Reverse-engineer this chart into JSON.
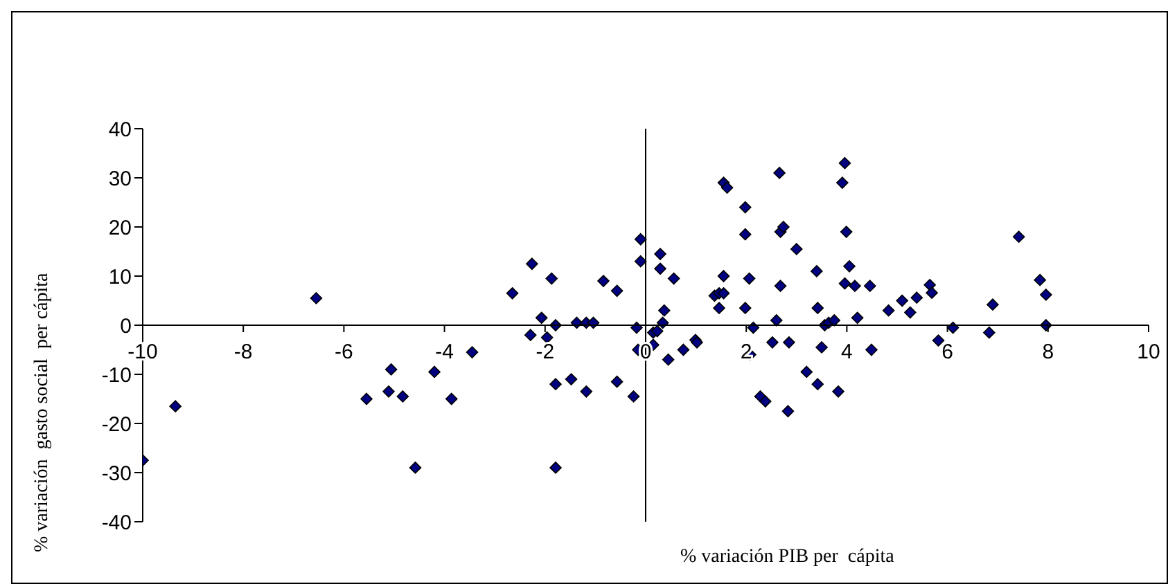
{
  "chart_data": {
    "type": "scatter",
    "xlabel": "% variación PIB per  cápita",
    "ylabel": "% variación  gasto social  per cápita",
    "xlim": [
      -10,
      10
    ],
    "xticks": [
      -10,
      -8,
      -6,
      -4,
      -2,
      0,
      2,
      4,
      6,
      8,
      10
    ],
    "ylim": [
      -40,
      40
    ],
    "yticks": [
      -40,
      -30,
      -20,
      -10,
      0,
      10,
      20,
      30,
      40
    ],
    "grid": false,
    "legend": false,
    "marker": "diamond",
    "ref_lines": [
      {
        "axis": "x",
        "value": 0,
        "color": "#000000"
      }
    ],
    "series": [
      {
        "color": "#000080",
        "x": [
          -10,
          -9.35,
          -6.55,
          -5.55,
          -5.11,
          -5.06,
          -4.83,
          -4.58,
          -4.2,
          -3.86,
          -3.45,
          -2.65,
          -2.26,
          -2.29,
          -2.07,
          -1.96,
          -1.87,
          -1.79,
          -1.79,
          -1.79,
          -1.48,
          -1.37,
          -1.18,
          -1.18,
          -1.04,
          -0.84,
          -0.57,
          -0.57,
          -0.24,
          -0.18,
          -0.1,
          -0.1,
          -0.15,
          0.15,
          0.23,
          0.15,
          0.29,
          0.29,
          0.37,
          0.34,
          0.45,
          0.56,
          0.75,
          0.99,
          1.02,
          1.37,
          1.46,
          1.46,
          1.55,
          1.55,
          1.55,
          1.62,
          1.98,
          1.98,
          2.06,
          1.98,
          2.08,
          2.14,
          2.28,
          2.38,
          2.52,
          2.6,
          2.66,
          2.68,
          2.74,
          2.68,
          2.85,
          2.83,
          3.0,
          3.2,
          3.4,
          3.42,
          3.42,
          3.5,
          3.56,
          3.64,
          3.75,
          3.83,
          3.91,
          3.96,
          3.99,
          4.05,
          3.96,
          4.16,
          4.46,
          4.21,
          4.49,
          4.83,
          5.1,
          5.26,
          5.39,
          5.65,
          5.69,
          5.82,
          6.11,
          6.83,
          6.9,
          7.42,
          7.84,
          7.96,
          7.96
        ],
        "values": [
          -27.5,
          -16.5,
          5.5,
          -15,
          -13.5,
          -9,
          -14.5,
          -29,
          -9.5,
          -15,
          -5.5,
          6.5,
          12.5,
          -2,
          1.5,
          -2.5,
          9.5,
          0,
          -12,
          -29,
          -11,
          0.5,
          -13.5,
          0.5,
          0.5,
          9,
          7,
          -11.5,
          -14.5,
          -0.5,
          17.5,
          13,
          -5,
          -1.5,
          -1.2,
          -4,
          14.5,
          11.5,
          3,
          0.5,
          -7,
          9.5,
          -5,
          -3,
          -3.5,
          6,
          6.5,
          3.5,
          10,
          6.5,
          29,
          28,
          24,
          18.5,
          9.5,
          3.5,
          -6,
          -0.5,
          -14.5,
          -15.5,
          -3.5,
          1,
          31,
          19,
          20,
          8,
          -3.5,
          -17.5,
          15.5,
          -9.5,
          11,
          3.5,
          -12,
          -4.5,
          0,
          0.5,
          1,
          -13.5,
          29,
          33,
          19,
          12,
          8.5,
          8,
          8,
          1.5,
          -5,
          3,
          5,
          2.6,
          5.6,
          8.2,
          6.6,
          -3.1,
          -0.5,
          -1.5,
          4.2,
          18,
          9.2,
          6.2,
          0
        ]
      }
    ]
  }
}
